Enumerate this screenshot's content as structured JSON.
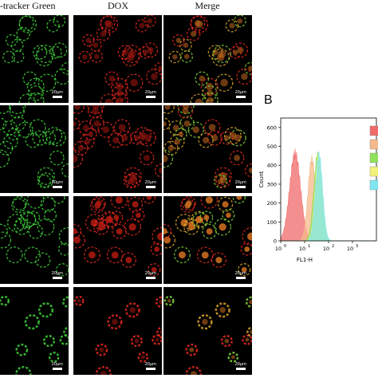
{
  "columns": [
    {
      "title": "to-tracker Green",
      "channel": "green",
      "color": "#3fd13a"
    },
    {
      "title": "DOX",
      "channel": "red",
      "color": "#e0281e"
    },
    {
      "title": "Merge",
      "channel": "merge",
      "color": "#d9a52a"
    }
  ],
  "rows": 4,
  "scalebar_label": "20μm",
  "panel_b": {
    "letter": "B",
    "chart_data": {
      "type": "area",
      "title": "",
      "xlabel": "FL1-H",
      "ylabel": "Count",
      "x_scale": "log",
      "xlim": [
        1,
        10000
      ],
      "ylim": [
        0,
        650
      ],
      "y_ticks": [
        0,
        100,
        200,
        300,
        400,
        500,
        600
      ],
      "x_ticks": [
        {
          "base": "10",
          "exp": "0"
        },
        {
          "base": "10",
          "exp": "1"
        },
        {
          "base": "10",
          "exp": "2"
        },
        {
          "base": "10",
          "exp": "3"
        }
      ],
      "series": [
        {
          "color": "#f06a6a",
          "peak_x": 4,
          "peak_y": 460,
          "width": 0.23
        },
        {
          "color": "#f5b98c",
          "peak_x": 20,
          "peak_y": 430,
          "width": 0.16
        },
        {
          "color": "#8fe05a",
          "peak_x": 35,
          "peak_y": 455,
          "width": 0.16
        },
        {
          "color": "#f2f27a",
          "peak_x": 38,
          "peak_y": 440,
          "width": 0.15
        },
        {
          "color": "#7fe6f0",
          "peak_x": 40,
          "peak_y": 450,
          "width": 0.15
        }
      ],
      "legend_placement": "right"
    }
  }
}
